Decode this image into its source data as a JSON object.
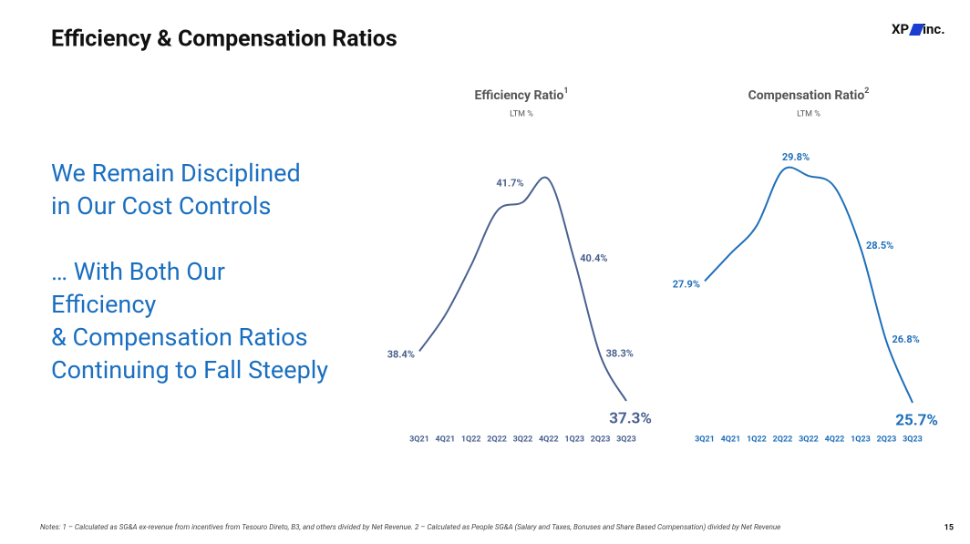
{
  "header": {
    "title": "Efficiency & Compensation Ratios",
    "logo_left": "XP",
    "logo_right": "inc."
  },
  "message": [
    "We Remain Disciplined",
    "in Our Cost Controls",
    "… With Both Our",
    "Efficiency",
    "& Compensation Ratios",
    "Continuing to Fall Steeply"
  ],
  "chart_data": [
    {
      "type": "line",
      "title": "Efficiency Ratio",
      "title_note": "1",
      "subtitle": "LTM %",
      "categories": [
        "3Q21",
        "4Q21",
        "1Q22",
        "2Q22",
        "3Q22",
        "4Q22",
        "1Q23",
        "2Q23",
        "3Q23"
      ],
      "values": [
        38.4,
        39.2,
        40.3,
        41.5,
        41.7,
        42.2,
        40.4,
        38.3,
        37.3
      ],
      "value_labels": [
        "38.4%",
        null,
        null,
        null,
        "41.7%",
        null,
        "40.4%",
        "38.3%",
        "37.3%"
      ],
      "color": "#4a6290"
    },
    {
      "type": "line",
      "title": "Compensation Ratio",
      "title_note": "2",
      "subtitle": "LTM %",
      "categories": [
        "3Q21",
        "4Q21",
        "1Q22",
        "2Q22",
        "3Q22",
        "4Q22",
        "1Q23",
        "2Q23",
        "3Q23"
      ],
      "values": [
        27.9,
        28.4,
        28.9,
        29.9,
        29.8,
        29.6,
        28.5,
        26.8,
        25.7
      ],
      "value_labels": [
        "27.9%",
        null,
        null,
        null,
        "29.8%",
        null,
        "28.5%",
        "26.8%",
        "25.7%"
      ],
      "color": "#1f6fba"
    }
  ],
  "footer": {
    "notes": "Notes: 1 – Calculated as SG&A ex-revenue from incentives from Tesouro Direto, B3, and others divided by Net Revenue. 2 – Calculated as People SG&A (Salary and Taxes, Bonuses and Share Based Compensation) divided by Net Revenue",
    "page": "15"
  }
}
